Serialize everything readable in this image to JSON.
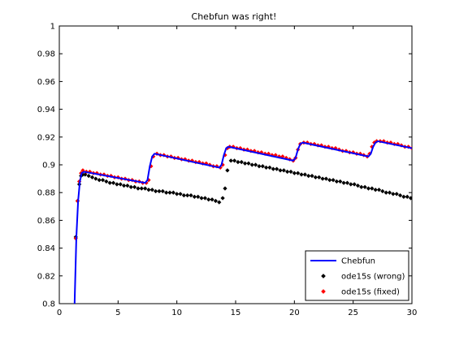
{
  "colors": {
    "background": "#ffffff",
    "axis": "#000000",
    "chebfun": "#0000ff",
    "wrong": "#000000",
    "fixed": "#ff0000"
  },
  "chart_data": {
    "type": "line",
    "title": "Chebfun was right!",
    "xlabel": "",
    "ylabel": "",
    "xlim": [
      0,
      30
    ],
    "ylim": [
      0.8,
      1.0
    ],
    "xticks": [
      0,
      5,
      10,
      15,
      20,
      25,
      30
    ],
    "yticks": [
      0.8,
      0.82,
      0.84,
      0.86,
      0.88,
      0.9,
      0.92,
      0.94,
      0.96,
      0.98,
      1
    ],
    "ytick_labels": [
      "0.8",
      "0.82",
      "0.84",
      "0.86",
      "0.88",
      "0.9",
      "0.92",
      "0.94",
      "0.96",
      "0.98",
      "1"
    ],
    "grid": false,
    "legend_position": "bottom-right",
    "series": [
      {
        "name": "Chebfun",
        "style": "line",
        "color": "#0000ff",
        "x": [
          1.3,
          1.45,
          1.6,
          1.75,
          1.9,
          2.1,
          7.3,
          7.5,
          7.7,
          7.9,
          8.1,
          13.6,
          13.8,
          14.0,
          14.2,
          14.4,
          19.9,
          20.1,
          20.3,
          20.5,
          20.7,
          26.3,
          26.5,
          26.7,
          26.9,
          27.1,
          30.0
        ],
        "y": [
          0.8,
          0.848,
          0.874,
          0.888,
          0.894,
          0.895,
          0.887,
          0.889,
          0.899,
          0.906,
          0.908,
          0.898,
          0.9,
          0.907,
          0.912,
          0.913,
          0.903,
          0.905,
          0.911,
          0.915,
          0.916,
          0.906,
          0.908,
          0.913,
          0.916,
          0.917,
          0.912
        ]
      },
      {
        "name": "ode15s (wrong)",
        "style": "marker",
        "color": "#000000",
        "x": [
          1.4,
          1.55,
          1.7,
          1.85,
          2.0,
          2.2,
          2.5,
          2.8,
          3.1,
          3.4,
          3.7,
          4.0,
          4.3,
          4.6,
          4.9,
          5.2,
          5.5,
          5.8,
          6.1,
          6.4,
          6.7,
          7.0,
          7.3,
          7.6,
          7.9,
          8.2,
          8.5,
          8.8,
          9.1,
          9.4,
          9.7,
          10.0,
          10.3,
          10.6,
          10.9,
          11.2,
          11.5,
          11.8,
          12.1,
          12.4,
          12.7,
          13.0,
          13.3,
          13.6,
          13.9,
          14.1,
          14.3,
          14.6,
          14.9,
          15.2,
          15.5,
          15.8,
          16.1,
          16.4,
          16.7,
          17.0,
          17.3,
          17.6,
          17.9,
          18.2,
          18.5,
          18.8,
          19.1,
          19.4,
          19.7,
          20.0,
          20.3,
          20.6,
          20.9,
          21.2,
          21.5,
          21.8,
          22.1,
          22.4,
          22.7,
          23.0,
          23.3,
          23.6,
          23.9,
          24.2,
          24.5,
          24.8,
          25.1,
          25.4,
          25.7,
          26.0,
          26.3,
          26.6,
          26.9,
          27.2,
          27.5,
          27.8,
          28.1,
          28.4,
          28.7,
          29.0,
          29.3,
          29.6,
          29.9
        ],
        "y": [
          0.848,
          0.874,
          0.886,
          0.892,
          0.893,
          0.893,
          0.892,
          0.891,
          0.89,
          0.889,
          0.889,
          0.888,
          0.887,
          0.887,
          0.886,
          0.886,
          0.885,
          0.885,
          0.884,
          0.884,
          0.883,
          0.883,
          0.883,
          0.882,
          0.882,
          0.881,
          0.881,
          0.881,
          0.88,
          0.88,
          0.88,
          0.879,
          0.879,
          0.878,
          0.878,
          0.878,
          0.877,
          0.877,
          0.876,
          0.876,
          0.875,
          0.875,
          0.874,
          0.873,
          0.876,
          0.883,
          0.896,
          0.903,
          0.903,
          0.902,
          0.902,
          0.901,
          0.901,
          0.9,
          0.9,
          0.899,
          0.899,
          0.898,
          0.898,
          0.897,
          0.897,
          0.896,
          0.896,
          0.895,
          0.895,
          0.894,
          0.894,
          0.893,
          0.893,
          0.892,
          0.892,
          0.891,
          0.891,
          0.89,
          0.89,
          0.889,
          0.889,
          0.888,
          0.888,
          0.887,
          0.887,
          0.886,
          0.886,
          0.885,
          0.884,
          0.884,
          0.883,
          0.883,
          0.882,
          0.882,
          0.881,
          0.88,
          0.88,
          0.879,
          0.879,
          0.878,
          0.877,
          0.877,
          0.876
        ]
      },
      {
        "name": "ode15s (fixed)",
        "style": "marker",
        "color": "#ff0000",
        "x": [
          1.4,
          1.55,
          1.7,
          1.85,
          2.0,
          2.3,
          2.6,
          2.9,
          3.2,
          3.5,
          3.8,
          4.1,
          4.4,
          4.7,
          5.0,
          5.3,
          5.6,
          5.9,
          6.2,
          6.5,
          6.8,
          7.1,
          7.4,
          7.6,
          7.8,
          8.0,
          8.3,
          8.6,
          8.9,
          9.2,
          9.5,
          9.8,
          10.1,
          10.4,
          10.7,
          11.0,
          11.3,
          11.6,
          11.9,
          12.2,
          12.5,
          12.8,
          13.1,
          13.4,
          13.7,
          13.9,
          14.1,
          14.3,
          14.5,
          14.8,
          15.1,
          15.4,
          15.7,
          16.0,
          16.3,
          16.6,
          16.9,
          17.2,
          17.5,
          17.8,
          18.1,
          18.4,
          18.7,
          19.0,
          19.3,
          19.6,
          19.9,
          20.1,
          20.3,
          20.5,
          20.8,
          21.1,
          21.4,
          21.7,
          22.0,
          22.3,
          22.6,
          22.9,
          23.2,
          23.5,
          23.8,
          24.1,
          24.4,
          24.7,
          25.0,
          25.3,
          25.6,
          25.9,
          26.2,
          26.4,
          26.6,
          26.8,
          27.0,
          27.3,
          27.6,
          27.9,
          28.2,
          28.5,
          28.8,
          29.1,
          29.4,
          29.7,
          30.0
        ],
        "y": [
          0.847,
          0.874,
          0.888,
          0.894,
          0.896,
          0.895,
          0.895,
          0.894,
          0.894,
          0.893,
          0.893,
          0.892,
          0.892,
          0.891,
          0.891,
          0.89,
          0.89,
          0.889,
          0.889,
          0.888,
          0.888,
          0.887,
          0.887,
          0.889,
          0.899,
          0.906,
          0.908,
          0.907,
          0.907,
          0.906,
          0.906,
          0.905,
          0.905,
          0.904,
          0.904,
          0.903,
          0.903,
          0.902,
          0.902,
          0.901,
          0.901,
          0.9,
          0.899,
          0.899,
          0.898,
          0.9,
          0.907,
          0.912,
          0.913,
          0.913,
          0.912,
          0.912,
          0.911,
          0.911,
          0.91,
          0.91,
          0.909,
          0.909,
          0.908,
          0.908,
          0.907,
          0.907,
          0.906,
          0.906,
          0.905,
          0.904,
          0.903,
          0.905,
          0.911,
          0.915,
          0.916,
          0.916,
          0.915,
          0.915,
          0.914,
          0.914,
          0.913,
          0.913,
          0.912,
          0.912,
          0.911,
          0.91,
          0.91,
          0.909,
          0.909,
          0.908,
          0.908,
          0.907,
          0.906,
          0.908,
          0.913,
          0.916,
          0.917,
          0.917,
          0.917,
          0.916,
          0.916,
          0.915,
          0.915,
          0.914,
          0.913,
          0.913,
          0.912
        ]
      }
    ]
  }
}
